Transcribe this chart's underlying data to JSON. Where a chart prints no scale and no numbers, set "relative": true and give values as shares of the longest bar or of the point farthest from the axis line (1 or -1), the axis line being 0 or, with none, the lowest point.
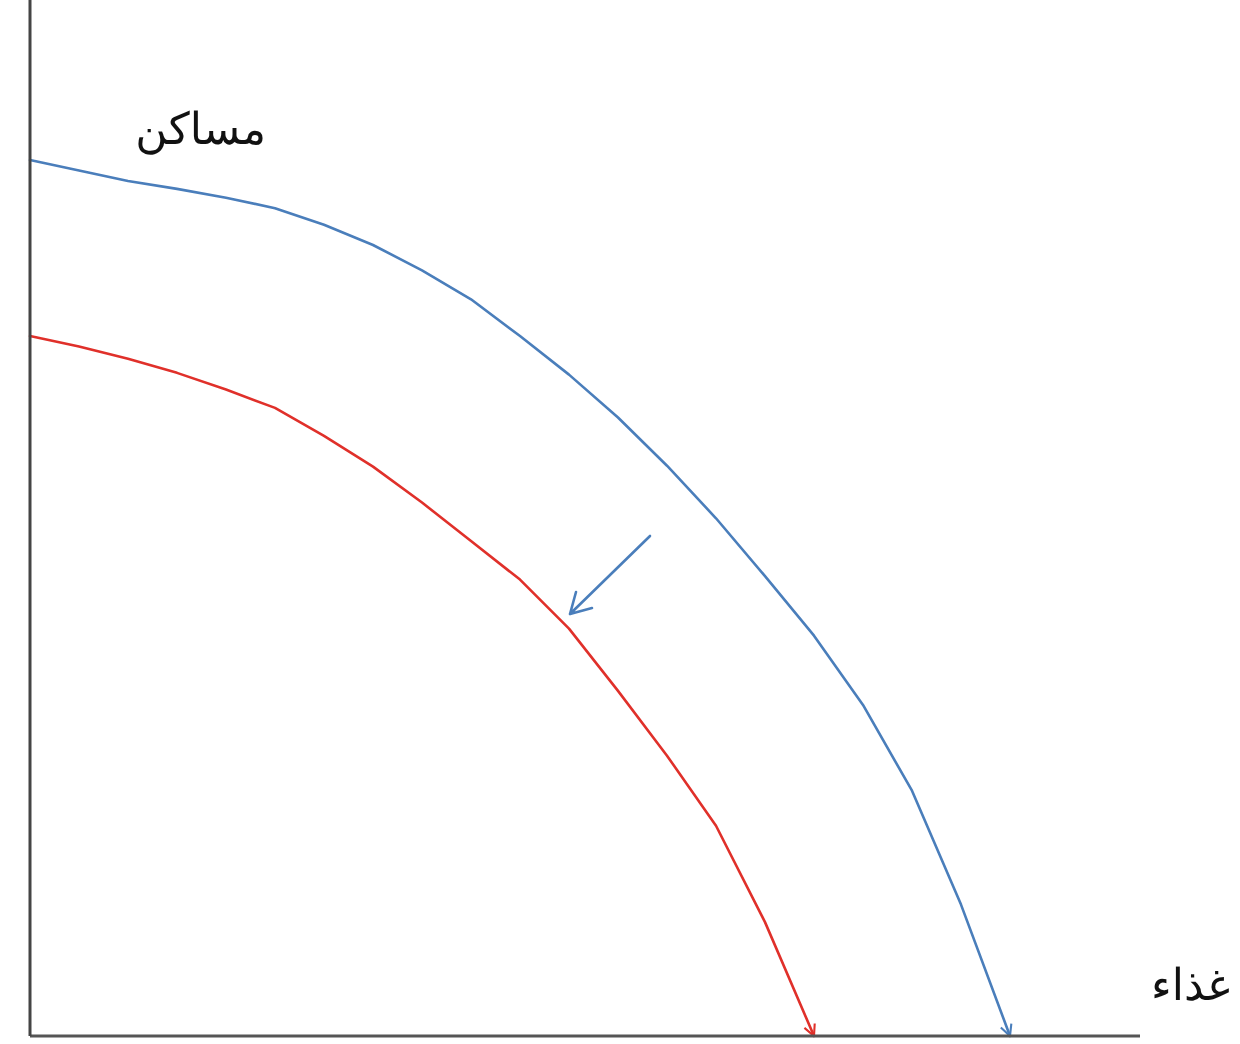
{
  "chart_data": {
    "type": "line",
    "relative": true,
    "xlabel": "غذاء",
    "ylabel": "مساكن",
    "categories": [
      null,
      null,
      null,
      null,
      null,
      null,
      null,
      null,
      null,
      null,
      null,
      null,
      null,
      null,
      null,
      null,
      null,
      null,
      null,
      null,
      null
    ],
    "series": [
      {
        "color": "#4a7ebb",
        "values": [
          1,
          0.988,
          0.976,
          0.967,
          0.957,
          0.945,
          0.926,
          0.903,
          0.874,
          0.841,
          0.799,
          0.755,
          0.706,
          0.651,
          0.591,
          0.525,
          0.457,
          0.378,
          0.28,
          0.15,
          0
        ]
      },
      {
        "color": "#e0302a",
        "values": [
          0.799,
          0.787,
          0.773,
          0.757,
          0.738,
          0.717,
          0.685,
          0.65,
          0.609,
          0.565,
          0.521,
          0.465,
          0.394,
          0.32,
          0.24,
          0.13,
          0,
          null,
          null,
          null,
          null
        ]
      }
    ]
  }
}
